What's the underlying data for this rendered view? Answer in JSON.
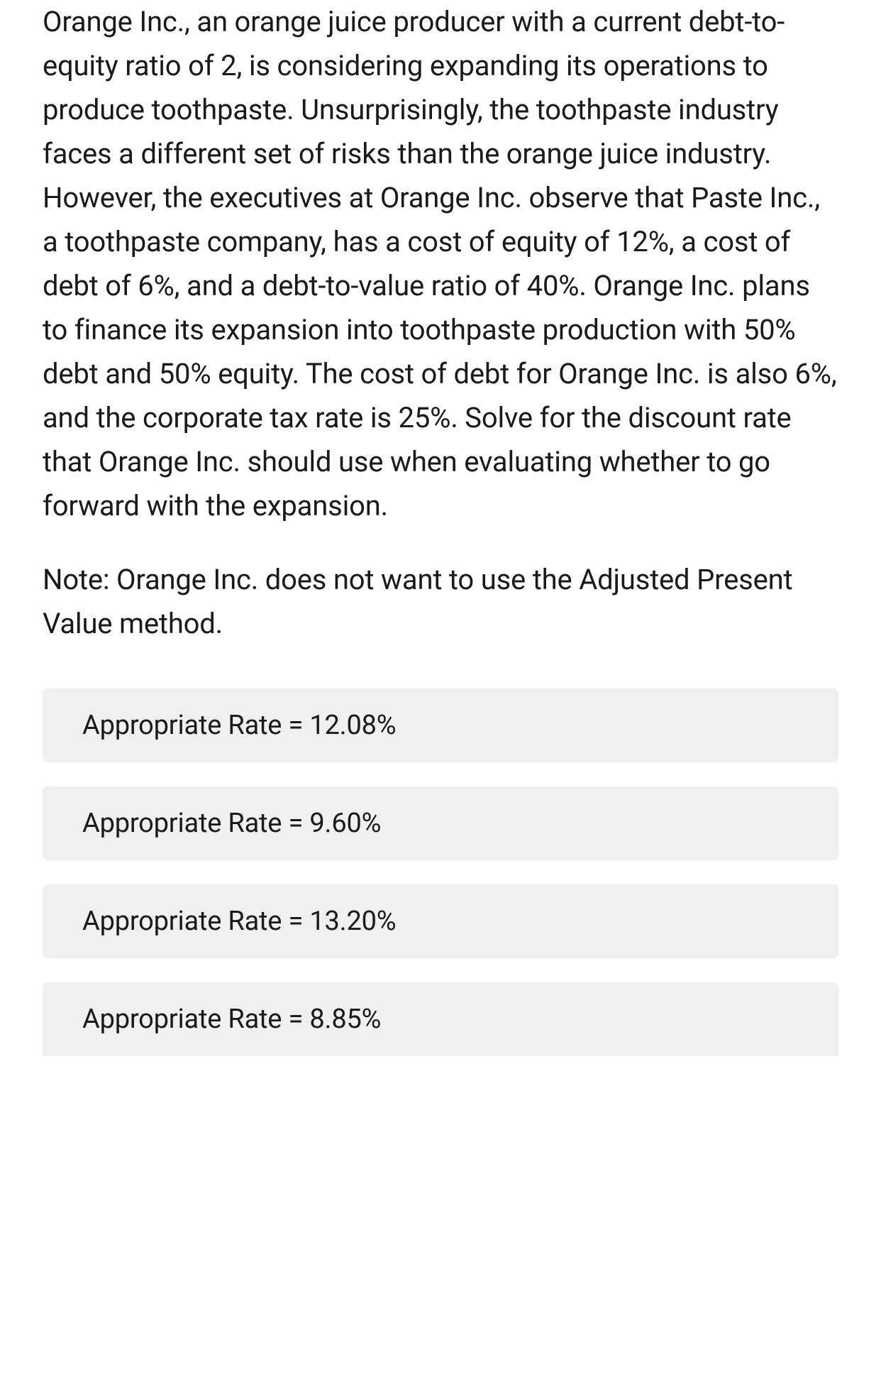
{
  "question": {
    "main_text": "Orange Inc., an orange juice producer with a current debt-to-equity ratio of 2, is considering expanding its operations to produce toothpaste. Unsurprisingly, the toothpaste industry faces a different set of risks than the orange juice industry. However, the executives at Orange Inc. observe that Paste Inc., a toothpaste company, has a cost of equity of 12%, a cost of debt of 6%, and a debt-to-value ratio of 40%. Orange Inc. plans to finance its expansion into toothpaste production with 50% debt and 50% equity. The cost of debt for Orange Inc. is also 6%, and the corporate tax rate is 25%. Solve for the discount rate that Orange Inc. should use when evaluating whether to go forward with the expansion.",
    "note_text": "Note: Orange Inc. does not want to use the Adjusted Present Value method."
  },
  "options": [
    {
      "label": "Appropriate Rate = 12.08%"
    },
    {
      "label": "Appropriate Rate = 9.60%"
    },
    {
      "label": "Appropriate Rate = 13.20%"
    },
    {
      "label": "Appropriate Rate = 8.85%"
    }
  ],
  "styling": {
    "background_color": "#ffffff",
    "text_color": "#1a1a1a",
    "option_background": "#f0f0f0",
    "question_fontsize": 40,
    "option_fontsize": 38,
    "option_border_radius": 8
  }
}
